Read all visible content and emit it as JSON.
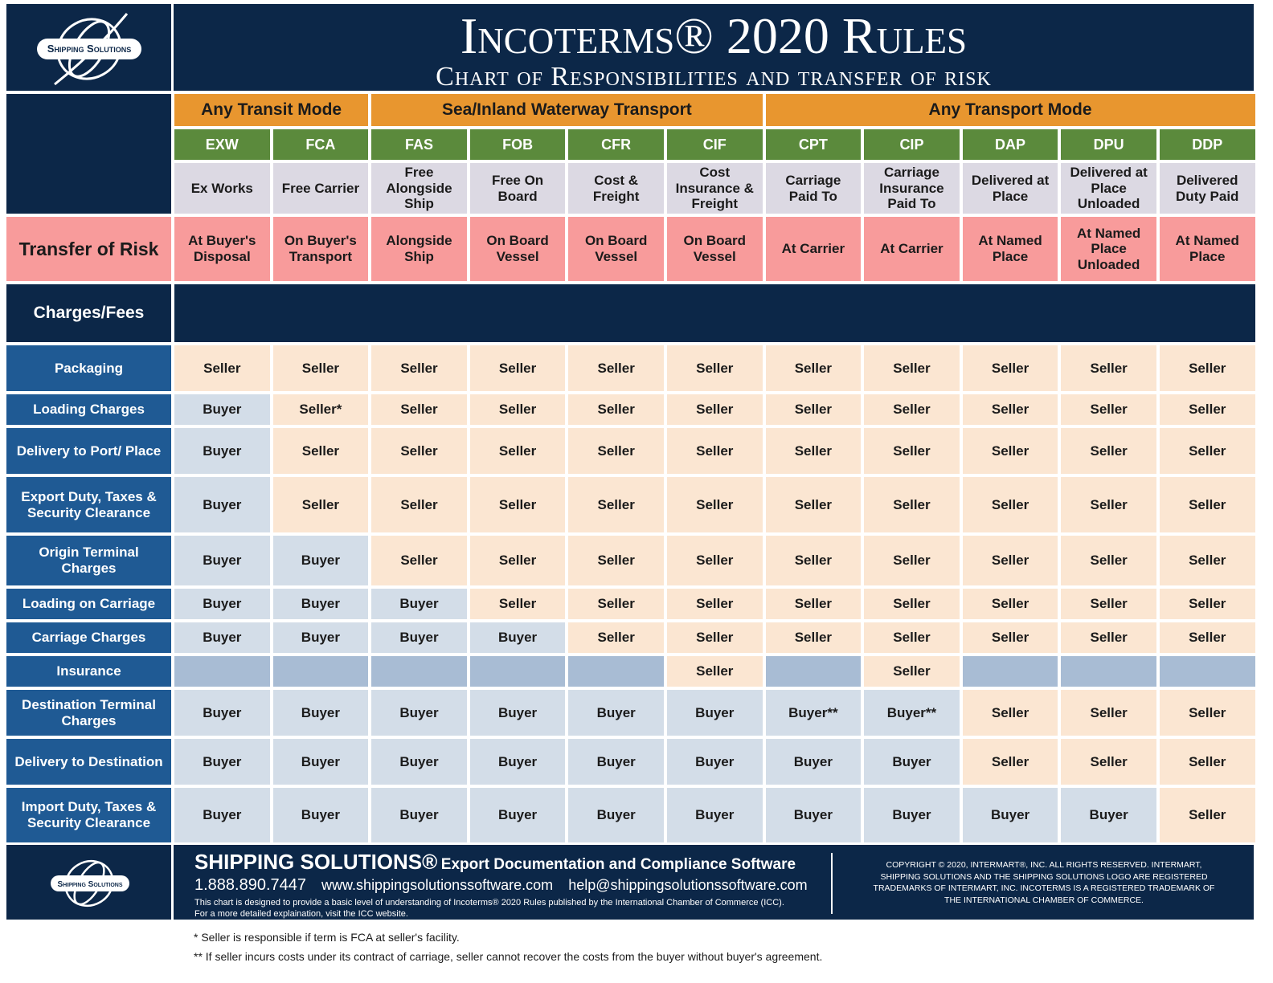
{
  "header": {
    "logo": "Shipping Solutions",
    "title": "Incoterms® 2020 Rules",
    "subtitle": "Chart of Responsibilities and transfer of risk"
  },
  "groups": [
    "Any Transit Mode",
    "Sea/Inland Waterway Transport",
    "Any Transport Mode"
  ],
  "terms": [
    {
      "code": "EXW",
      "name": "Ex Works"
    },
    {
      "code": "FCA",
      "name": "Free Carrier"
    },
    {
      "code": "FAS",
      "name": "Free Alongside Ship"
    },
    {
      "code": "FOB",
      "name": "Free On Board"
    },
    {
      "code": "CFR",
      "name": "Cost & Freight"
    },
    {
      "code": "CIF",
      "name": "Cost Insurance & Freight"
    },
    {
      "code": "CPT",
      "name": "Carriage Paid To"
    },
    {
      "code": "CIP",
      "name": "Carriage Insurance Paid To"
    },
    {
      "code": "DAP",
      "name": "Delivered at Place"
    },
    {
      "code": "DPU",
      "name": "Delivered at Place Unloaded"
    },
    {
      "code": "DDP",
      "name": "Delivered Duty Paid"
    }
  ],
  "risk_label": "Transfer of Risk",
  "risk": [
    "At Buyer's Disposal",
    "On Buyer's Transport",
    "Alongside Ship",
    "On Board Vessel",
    "On Board Vessel",
    "On Board Vessel",
    "At Carrier",
    "At Carrier",
    "At Named Place",
    "At Named Place Unloaded",
    "At Named Place"
  ],
  "charges_label": "Charges/Fees",
  "rows": [
    {
      "label": "Packaging",
      "cells": [
        "Seller",
        "Seller",
        "Seller",
        "Seller",
        "Seller",
        "Seller",
        "Seller",
        "Seller",
        "Seller",
        "Seller",
        "Seller"
      ]
    },
    {
      "label": "Loading Charges",
      "cells": [
        "Buyer",
        "Seller*",
        "Seller",
        "Seller",
        "Seller",
        "Seller",
        "Seller",
        "Seller",
        "Seller",
        "Seller",
        "Seller"
      ]
    },
    {
      "label": "Delivery to Port/ Place",
      "cells": [
        "Buyer",
        "Seller",
        "Seller",
        "Seller",
        "Seller",
        "Seller",
        "Seller",
        "Seller",
        "Seller",
        "Seller",
        "Seller"
      ]
    },
    {
      "label": "Export Duty, Taxes & Security Clearance",
      "cells": [
        "Buyer",
        "Seller",
        "Seller",
        "Seller",
        "Seller",
        "Seller",
        "Seller",
        "Seller",
        "Seller",
        "Seller",
        "Seller"
      ]
    },
    {
      "label": "Origin Terminal Charges",
      "cells": [
        "Buyer",
        "Buyer",
        "Seller",
        "Seller",
        "Seller",
        "Seller",
        "Seller",
        "Seller",
        "Seller",
        "Seller",
        "Seller"
      ]
    },
    {
      "label": "Loading on Carriage",
      "cells": [
        "Buyer",
        "Buyer",
        "Buyer",
        "Seller",
        "Seller",
        "Seller",
        "Seller",
        "Seller",
        "Seller",
        "Seller",
        "Seller"
      ]
    },
    {
      "label": "Carriage Charges",
      "cells": [
        "Buyer",
        "Buyer",
        "Buyer",
        "Buyer",
        "Seller",
        "Seller",
        "Seller",
        "Seller",
        "Seller",
        "Seller",
        "Seller"
      ]
    },
    {
      "label": "Insurance",
      "cells": [
        null,
        null,
        null,
        null,
        null,
        "Seller",
        null,
        "Seller",
        null,
        null,
        null
      ]
    },
    {
      "label": "Destination Terminal Charges",
      "cells": [
        "Buyer",
        "Buyer",
        "Buyer",
        "Buyer",
        "Buyer",
        "Buyer",
        "Buyer**",
        "Buyer**",
        "Seller",
        "Seller",
        "Seller"
      ]
    },
    {
      "label": "Delivery to Destination",
      "cells": [
        "Buyer",
        "Buyer",
        "Buyer",
        "Buyer",
        "Buyer",
        "Buyer",
        "Buyer",
        "Buyer",
        "Seller",
        "Seller",
        "Seller"
      ]
    },
    {
      "label": "Import Duty, Taxes & Security Clearance",
      "cells": [
        "Buyer",
        "Buyer",
        "Buyer",
        "Buyer",
        "Buyer",
        "Buyer",
        "Buyer",
        "Buyer",
        "Buyer",
        "Buyer",
        "Seller"
      ]
    }
  ],
  "cell_fills": {
    "Seller": "#fbe6d2",
    "Seller*": "#fbe6d2",
    "Buyer": "#d3dde8",
    "Buyer**": "#d3dde8"
  },
  "empty_fill": "#a8bcd4",
  "footer": {
    "brand": "SHIPPING SOLUTIONS®",
    "tagline": "Export Documentation and Compliance Software",
    "phone": "1.888.890.7447",
    "website": "www.shippingsolutionssoftware.com",
    "email": "help@shippingsolutionssoftware.com",
    "disclaimer": "This chart is designed to provide a basic level of understanding of Incoterms® 2020 Rules published by the International Chamber of Commerce (ICC). For a more detailed explaination, visit the ICC website.",
    "copyright": "COPYRIGHT © 2020, INTERMART®, INC. ALL RIGHTS RESERVED. INTERMART, SHIPPING SOLUTIONS AND THE SHIPPING SOLUTIONS LOGO ARE REGISTERED TRADEMARKS OF INTERMART, INC. INCOTERMS IS A REGISTERED TRADEMARK OF THE INTERNATIONAL CHAMBER OF COMMERCE."
  },
  "notes": [
    "* Seller is responsible if term is FCA at seller's facility.",
    "** If seller incurs costs under its contract of carriage, seller cannot recover the costs from the buyer without buyer's agreement."
  ]
}
